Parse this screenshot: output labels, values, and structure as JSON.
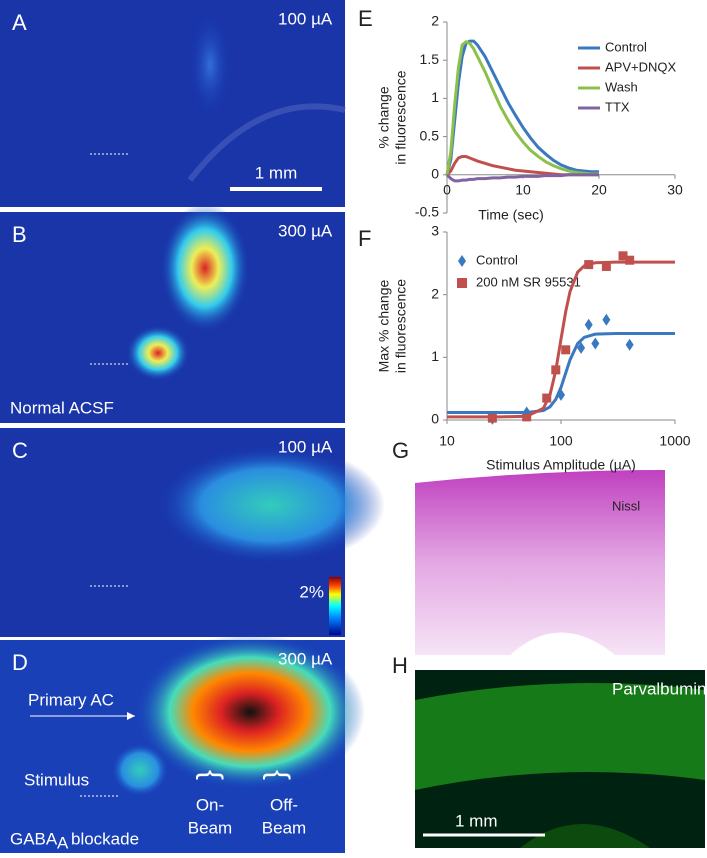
{
  "chart_data": [
    {
      "type": "line",
      "panel": "E",
      "x_label": "Time (sec)",
      "y_label": [
        "% change",
        "in fluorescence"
      ],
      "x": [
        0,
        0.5,
        1,
        1.5,
        2,
        2.5,
        3,
        3.5,
        4,
        5,
        6,
        7,
        8,
        9,
        10,
        11,
        12,
        13,
        14,
        15,
        16,
        17,
        18,
        19,
        20
      ],
      "series": [
        {
          "name": "Control",
          "color": "#3a78c0",
          "values": [
            0,
            0.2,
            0.7,
            1.2,
            1.55,
            1.72,
            1.75,
            1.75,
            1.7,
            1.55,
            1.35,
            1.15,
            0.95,
            0.78,
            0.62,
            0.48,
            0.36,
            0.27,
            0.19,
            0.13,
            0.09,
            0.06,
            0.05,
            0.04,
            0.04
          ]
        },
        {
          "name": "APV+DNQX",
          "color": "#c0504d",
          "values": [
            0,
            0.05,
            0.15,
            0.22,
            0.24,
            0.24,
            0.22,
            0.2,
            0.18,
            0.15,
            0.12,
            0.1,
            0.08,
            0.06,
            0.05,
            0.04,
            0.03,
            0.02,
            0.01,
            0,
            0,
            0,
            0,
            0,
            0
          ]
        },
        {
          "name": "Wash",
          "color": "#8cc04a",
          "values": [
            0,
            0.3,
            0.9,
            1.4,
            1.7,
            1.74,
            1.72,
            1.65,
            1.55,
            1.35,
            1.12,
            0.9,
            0.72,
            0.56,
            0.43,
            0.32,
            0.24,
            0.17,
            0.12,
            0.08,
            0.05,
            0.03,
            0.02,
            0.01,
            0.01
          ]
        },
        {
          "name": "TTX",
          "color": "#8064a2",
          "values": [
            0,
            -0.05,
            -0.08,
            -0.08,
            -0.07,
            -0.07,
            -0.06,
            -0.06,
            -0.05,
            -0.05,
            -0.04,
            -0.04,
            -0.03,
            -0.03,
            -0.02,
            -0.02,
            -0.02,
            -0.01,
            -0.01,
            -0.01,
            0,
            0,
            0,
            0,
            0
          ]
        }
      ],
      "xlim": [
        0,
        30
      ],
      "xticks": [
        0,
        10,
        20,
        30
      ],
      "ylim": [
        -0.5,
        2
      ],
      "yticks": [
        -0.5,
        0,
        0.5,
        1,
        1.5,
        2
      ],
      "legend": "upper-right"
    },
    {
      "type": "scatter",
      "panel": "F",
      "x_label": "Stimulus Amplitude (µA)",
      "y_label": [
        "Max % change",
        "in fluorescence"
      ],
      "xscale": "log",
      "series": [
        {
          "name": "Control",
          "color": "#3a78c0",
          "marker": "diamond",
          "x": [
            25,
            50,
            100,
            150,
            175,
            200,
            250,
            400
          ],
          "values": [
            0.02,
            0.12,
            0.4,
            1.15,
            1.52,
            1.22,
            1.6,
            1.2
          ]
        },
        {
          "name": "200 nM SR 95531",
          "color": "#c0504d",
          "marker": "square",
          "x": [
            25,
            50,
            75,
            90,
            110,
            175,
            250,
            350,
            400
          ],
          "values": [
            0.03,
            0.05,
            0.35,
            0.8,
            1.12,
            2.48,
            2.45,
            2.62,
            2.55
          ]
        },
        {
          "color": "#3a78c0",
          "marker": "line",
          "x": [
            10,
            30,
            50,
            70,
            80,
            90,
            100,
            110,
            120,
            140,
            160,
            200,
            300,
            1000
          ],
          "values": [
            0.12,
            0.12,
            0.12,
            0.15,
            0.21,
            0.33,
            0.52,
            0.75,
            0.96,
            1.22,
            1.32,
            1.37,
            1.38,
            1.38
          ]
        },
        {
          "color": "#c0504d",
          "marker": "line",
          "x": [
            10,
            30,
            50,
            70,
            80,
            90,
            100,
            110,
            120,
            140,
            160,
            200,
            300,
            1000
          ],
          "values": [
            0.05,
            0.05,
            0.06,
            0.185,
            0.4,
            0.79,
            1.29,
            1.73,
            2.05,
            2.36,
            2.46,
            2.51,
            2.52,
            2.52
          ]
        }
      ],
      "xlim": [
        10,
        1000
      ],
      "xticks": [
        10,
        100,
        1000
      ],
      "ylim": [
        0,
        3
      ],
      "yticks": [
        0,
        1,
        2,
        3
      ],
      "legend": "upper-left"
    }
  ],
  "image_panels": {
    "A": {
      "letter": "A",
      "stimulus": "100 µA",
      "scale": "1 mm"
    },
    "B": {
      "letter": "B",
      "stimulus": "300 µA",
      "condition": "Normal ACSF"
    },
    "C": {
      "letter": "C",
      "stimulus": "100 µA",
      "colorbar": "2%"
    },
    "D": {
      "letter": "D",
      "stimulus": "300 µA",
      "region": "Primary  AC",
      "site": "Stimulus",
      "on": [
        "On-",
        "Beam"
      ],
      "off": [
        "Off-",
        "Beam"
      ],
      "condition": "GABA",
      "condition_sub": "A",
      "condition_rest": "blockade"
    },
    "G": {
      "letter": "G",
      "stain": "Nissl"
    },
    "H": {
      "letter": "H",
      "stain": "Parvalbumin",
      "scale": "1 mm"
    }
  }
}
